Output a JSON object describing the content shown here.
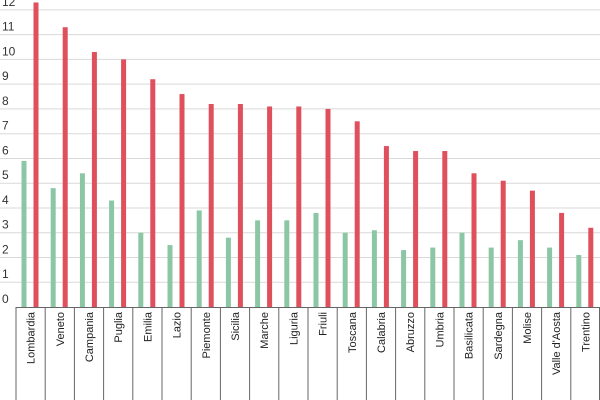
{
  "chart_data": {
    "type": "bar",
    "title": "",
    "xlabel": "",
    "ylabel": "",
    "ylim": [
      0,
      12.4
    ],
    "yticks": [
      0,
      1,
      2,
      3,
      4,
      5,
      6,
      7,
      8,
      9,
      10,
      11,
      12
    ],
    "grid": true,
    "legend": "none",
    "categories": [
      "Lombardia",
      "Veneto",
      "Campania",
      "Puglia",
      "Emilia",
      "Lazio",
      "Piemonte",
      "Sicilia",
      "Marche",
      "Liguria",
      "Friuli",
      "Toscana",
      "Calabria",
      "Abruzzo",
      "Umbria",
      "Basilicata",
      "Sardegna",
      "Molise",
      "Valle d'Aosta",
      "Trentino"
    ],
    "series": [
      {
        "color": "#8cc7a5",
        "values": [
          5.9,
          4.8,
          5.4,
          4.3,
          3.0,
          2.5,
          3.9,
          2.8,
          3.5,
          3.5,
          3.8,
          3.0,
          3.1,
          2.3,
          2.4,
          3.0,
          2.4,
          2.7,
          2.4,
          2.1
        ]
      },
      {
        "color": "#df4f5c",
        "values": [
          12.3,
          11.3,
          10.3,
          10.0,
          9.2,
          8.6,
          8.2,
          8.2,
          8.1,
          8.1,
          8.0,
          7.5,
          6.5,
          6.3,
          6.3,
          5.4,
          5.1,
          4.7,
          3.8,
          3.2
        ]
      }
    ]
  }
}
